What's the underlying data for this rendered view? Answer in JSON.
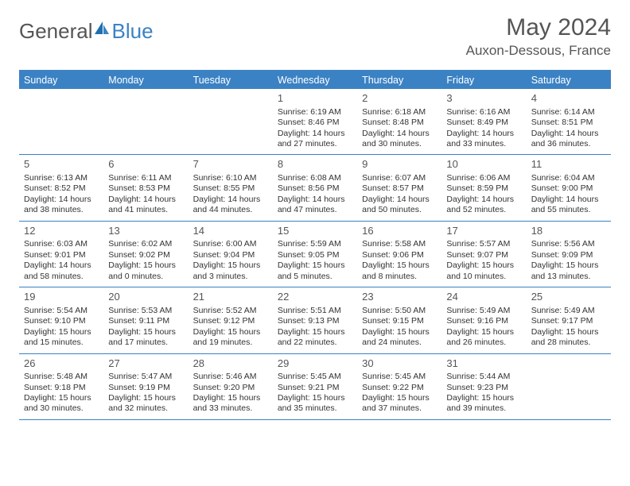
{
  "brand": {
    "part1": "General",
    "part2": "Blue"
  },
  "title": {
    "month_year": "May 2024",
    "location": "Auxon-Dessous, France"
  },
  "colors": {
    "header_bg": "#3b82c4",
    "border": "#3b82c4",
    "text": "#333333",
    "title_text": "#555555",
    "page_bg": "#ffffff"
  },
  "weekdays": [
    "Sunday",
    "Monday",
    "Tuesday",
    "Wednesday",
    "Thursday",
    "Friday",
    "Saturday"
  ],
  "weeks": [
    [
      null,
      null,
      null,
      {
        "num": "1",
        "sunrise": "Sunrise: 6:19 AM",
        "sunset": "Sunset: 8:46 PM",
        "daylight": "Daylight: 14 hours and 27 minutes."
      },
      {
        "num": "2",
        "sunrise": "Sunrise: 6:18 AM",
        "sunset": "Sunset: 8:48 PM",
        "daylight": "Daylight: 14 hours and 30 minutes."
      },
      {
        "num": "3",
        "sunrise": "Sunrise: 6:16 AM",
        "sunset": "Sunset: 8:49 PM",
        "daylight": "Daylight: 14 hours and 33 minutes."
      },
      {
        "num": "4",
        "sunrise": "Sunrise: 6:14 AM",
        "sunset": "Sunset: 8:51 PM",
        "daylight": "Daylight: 14 hours and 36 minutes."
      }
    ],
    [
      {
        "num": "5",
        "sunrise": "Sunrise: 6:13 AM",
        "sunset": "Sunset: 8:52 PM",
        "daylight": "Daylight: 14 hours and 38 minutes."
      },
      {
        "num": "6",
        "sunrise": "Sunrise: 6:11 AM",
        "sunset": "Sunset: 8:53 PM",
        "daylight": "Daylight: 14 hours and 41 minutes."
      },
      {
        "num": "7",
        "sunrise": "Sunrise: 6:10 AM",
        "sunset": "Sunset: 8:55 PM",
        "daylight": "Daylight: 14 hours and 44 minutes."
      },
      {
        "num": "8",
        "sunrise": "Sunrise: 6:08 AM",
        "sunset": "Sunset: 8:56 PM",
        "daylight": "Daylight: 14 hours and 47 minutes."
      },
      {
        "num": "9",
        "sunrise": "Sunrise: 6:07 AM",
        "sunset": "Sunset: 8:57 PM",
        "daylight": "Daylight: 14 hours and 50 minutes."
      },
      {
        "num": "10",
        "sunrise": "Sunrise: 6:06 AM",
        "sunset": "Sunset: 8:59 PM",
        "daylight": "Daylight: 14 hours and 52 minutes."
      },
      {
        "num": "11",
        "sunrise": "Sunrise: 6:04 AM",
        "sunset": "Sunset: 9:00 PM",
        "daylight": "Daylight: 14 hours and 55 minutes."
      }
    ],
    [
      {
        "num": "12",
        "sunrise": "Sunrise: 6:03 AM",
        "sunset": "Sunset: 9:01 PM",
        "daylight": "Daylight: 14 hours and 58 minutes."
      },
      {
        "num": "13",
        "sunrise": "Sunrise: 6:02 AM",
        "sunset": "Sunset: 9:02 PM",
        "daylight": "Daylight: 15 hours and 0 minutes."
      },
      {
        "num": "14",
        "sunrise": "Sunrise: 6:00 AM",
        "sunset": "Sunset: 9:04 PM",
        "daylight": "Daylight: 15 hours and 3 minutes."
      },
      {
        "num": "15",
        "sunrise": "Sunrise: 5:59 AM",
        "sunset": "Sunset: 9:05 PM",
        "daylight": "Daylight: 15 hours and 5 minutes."
      },
      {
        "num": "16",
        "sunrise": "Sunrise: 5:58 AM",
        "sunset": "Sunset: 9:06 PM",
        "daylight": "Daylight: 15 hours and 8 minutes."
      },
      {
        "num": "17",
        "sunrise": "Sunrise: 5:57 AM",
        "sunset": "Sunset: 9:07 PM",
        "daylight": "Daylight: 15 hours and 10 minutes."
      },
      {
        "num": "18",
        "sunrise": "Sunrise: 5:56 AM",
        "sunset": "Sunset: 9:09 PM",
        "daylight": "Daylight: 15 hours and 13 minutes."
      }
    ],
    [
      {
        "num": "19",
        "sunrise": "Sunrise: 5:54 AM",
        "sunset": "Sunset: 9:10 PM",
        "daylight": "Daylight: 15 hours and 15 minutes."
      },
      {
        "num": "20",
        "sunrise": "Sunrise: 5:53 AM",
        "sunset": "Sunset: 9:11 PM",
        "daylight": "Daylight: 15 hours and 17 minutes."
      },
      {
        "num": "21",
        "sunrise": "Sunrise: 5:52 AM",
        "sunset": "Sunset: 9:12 PM",
        "daylight": "Daylight: 15 hours and 19 minutes."
      },
      {
        "num": "22",
        "sunrise": "Sunrise: 5:51 AM",
        "sunset": "Sunset: 9:13 PM",
        "daylight": "Daylight: 15 hours and 22 minutes."
      },
      {
        "num": "23",
        "sunrise": "Sunrise: 5:50 AM",
        "sunset": "Sunset: 9:15 PM",
        "daylight": "Daylight: 15 hours and 24 minutes."
      },
      {
        "num": "24",
        "sunrise": "Sunrise: 5:49 AM",
        "sunset": "Sunset: 9:16 PM",
        "daylight": "Daylight: 15 hours and 26 minutes."
      },
      {
        "num": "25",
        "sunrise": "Sunrise: 5:49 AM",
        "sunset": "Sunset: 9:17 PM",
        "daylight": "Daylight: 15 hours and 28 minutes."
      }
    ],
    [
      {
        "num": "26",
        "sunrise": "Sunrise: 5:48 AM",
        "sunset": "Sunset: 9:18 PM",
        "daylight": "Daylight: 15 hours and 30 minutes."
      },
      {
        "num": "27",
        "sunrise": "Sunrise: 5:47 AM",
        "sunset": "Sunset: 9:19 PM",
        "daylight": "Daylight: 15 hours and 32 minutes."
      },
      {
        "num": "28",
        "sunrise": "Sunrise: 5:46 AM",
        "sunset": "Sunset: 9:20 PM",
        "daylight": "Daylight: 15 hours and 33 minutes."
      },
      {
        "num": "29",
        "sunrise": "Sunrise: 5:45 AM",
        "sunset": "Sunset: 9:21 PM",
        "daylight": "Daylight: 15 hours and 35 minutes."
      },
      {
        "num": "30",
        "sunrise": "Sunrise: 5:45 AM",
        "sunset": "Sunset: 9:22 PM",
        "daylight": "Daylight: 15 hours and 37 minutes."
      },
      {
        "num": "31",
        "sunrise": "Sunrise: 5:44 AM",
        "sunset": "Sunset: 9:23 PM",
        "daylight": "Daylight: 15 hours and 39 minutes."
      },
      null
    ]
  ]
}
